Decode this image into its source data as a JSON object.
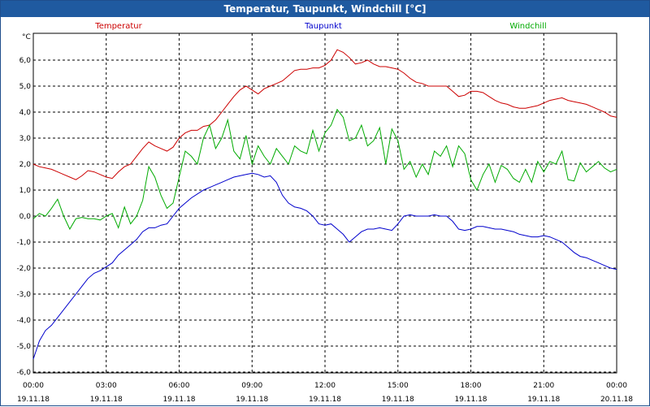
{
  "window": {
    "title": "Temperatur, Taupunkt, Windchill [°C]"
  },
  "chart_data": {
    "type": "line",
    "title": "Temperatur, Taupunkt, Windchill [°C]",
    "ylabel": "°C",
    "xlabel": "",
    "ylim": [
      -6,
      7
    ],
    "xlim": [
      0,
      24
    ],
    "grid": true,
    "y_ticks": [
      "-6,0",
      "-5,0",
      "-4,0",
      "-3,0",
      "-2,0",
      "-1,0",
      "0,0",
      "1,0",
      "2,0",
      "3,0",
      "4,0",
      "5,0",
      "6,0"
    ],
    "y_tick_values": [
      -6,
      -5,
      -4,
      -3,
      -2,
      -1,
      0,
      1,
      2,
      3,
      4,
      5,
      6
    ],
    "x_ticks": [
      {
        "time": "00:00",
        "date": "19.11.18"
      },
      {
        "time": "03:00",
        "date": "19.11.18"
      },
      {
        "time": "06:00",
        "date": "19.11.18"
      },
      {
        "time": "09:00",
        "date": "19.11.18"
      },
      {
        "time": "12:00",
        "date": "19.11.18"
      },
      {
        "time": "15:00",
        "date": "19.11.18"
      },
      {
        "time": "18:00",
        "date": "19.11.18"
      },
      {
        "time": "21:00",
        "date": "19.11.18"
      },
      {
        "time": "00:00",
        "date": "20.11.18"
      }
    ],
    "x_tick_hours": [
      0,
      3,
      6,
      9,
      12,
      15,
      18,
      21,
      24
    ],
    "legend": [
      "Temperatur",
      "Taupunkt",
      "Windchill"
    ],
    "legend_colors": [
      "#cc0000",
      "#0000cc",
      "#00aa00"
    ],
    "series": [
      {
        "name": "Temperatur",
        "color": "#cc0000",
        "x": [
          0,
          0.25,
          0.5,
          0.75,
          1,
          1.25,
          1.5,
          1.75,
          2,
          2.25,
          2.5,
          2.75,
          3,
          3.25,
          3.5,
          3.75,
          4,
          4.25,
          4.5,
          4.75,
          5,
          5.25,
          5.5,
          5.75,
          6,
          6.25,
          6.5,
          6.75,
          7,
          7.25,
          7.5,
          7.75,
          8,
          8.25,
          8.5,
          8.75,
          9,
          9.25,
          9.5,
          9.75,
          10,
          10.25,
          10.5,
          10.75,
          11,
          11.25,
          11.5,
          11.75,
          12,
          12.25,
          12.5,
          12.75,
          13,
          13.25,
          13.5,
          13.75,
          14,
          14.25,
          14.5,
          14.75,
          15,
          15.25,
          15.5,
          15.75,
          16,
          16.25,
          16.5,
          16.75,
          17,
          17.25,
          17.5,
          17.75,
          18,
          18.25,
          18.5,
          18.75,
          19,
          19.25,
          19.5,
          19.75,
          20,
          20.25,
          20.5,
          20.75,
          21,
          21.25,
          21.5,
          21.75,
          22,
          22.25,
          22.5,
          22.75,
          23,
          23.25,
          23.5,
          23.75,
          24
        ],
        "values": [
          2.0,
          1.9,
          1.85,
          1.8,
          1.7,
          1.6,
          1.5,
          1.4,
          1.55,
          1.75,
          1.7,
          1.6,
          1.5,
          1.45,
          1.7,
          1.9,
          2.0,
          2.3,
          2.6,
          2.85,
          2.7,
          2.6,
          2.5,
          2.65,
          3.0,
          3.2,
          3.3,
          3.3,
          3.45,
          3.5,
          3.7,
          4.0,
          4.3,
          4.6,
          4.85,
          5.0,
          4.85,
          4.7,
          4.9,
          5.0,
          5.1,
          5.2,
          5.4,
          5.6,
          5.65,
          5.65,
          5.7,
          5.7,
          5.8,
          6.0,
          6.4,
          6.3,
          6.1,
          5.85,
          5.9,
          6.0,
          5.85,
          5.75,
          5.75,
          5.7,
          5.65,
          5.5,
          5.3,
          5.15,
          5.1,
          5.0,
          5.0,
          5.0,
          5.0,
          4.8,
          4.6,
          4.65,
          4.8,
          4.8,
          4.75,
          4.6,
          4.45,
          4.35,
          4.3,
          4.2,
          4.15,
          4.15,
          4.2,
          4.25,
          4.35,
          4.45,
          4.5,
          4.55,
          4.45,
          4.4,
          4.35,
          4.3,
          4.2,
          4.1,
          4.0,
          3.85,
          3.8
        ]
      },
      {
        "name": "Taupunkt",
        "color": "#0000cc",
        "x": [
          0,
          0.25,
          0.5,
          0.75,
          1,
          1.25,
          1.5,
          1.75,
          2,
          2.25,
          2.5,
          2.75,
          3,
          3.25,
          3.5,
          3.75,
          4,
          4.25,
          4.5,
          4.75,
          5,
          5.25,
          5.5,
          5.75,
          6,
          6.25,
          6.5,
          6.75,
          7,
          7.25,
          7.5,
          7.75,
          8,
          8.25,
          8.5,
          8.75,
          9,
          9.25,
          9.5,
          9.75,
          10,
          10.25,
          10.5,
          10.75,
          11,
          11.25,
          11.5,
          11.75,
          12,
          12.25,
          12.5,
          12.75,
          13,
          13.25,
          13.5,
          13.75,
          14,
          14.25,
          14.5,
          14.75,
          15,
          15.25,
          15.5,
          15.75,
          16,
          16.25,
          16.5,
          16.75,
          17,
          17.25,
          17.5,
          17.75,
          18,
          18.25,
          18.5,
          18.75,
          19,
          19.25,
          19.5,
          19.75,
          20,
          20.25,
          20.5,
          20.75,
          21,
          21.25,
          21.5,
          21.75,
          22,
          22.25,
          22.5,
          22.75,
          23,
          23.25,
          23.5,
          23.75,
          24
        ],
        "values": [
          -5.5,
          -4.8,
          -4.4,
          -4.2,
          -3.9,
          -3.6,
          -3.3,
          -3.0,
          -2.7,
          -2.4,
          -2.2,
          -2.1,
          -1.95,
          -1.8,
          -1.5,
          -1.3,
          -1.1,
          -0.9,
          -0.6,
          -0.45,
          -0.45,
          -0.35,
          -0.3,
          0.0,
          0.3,
          0.5,
          0.7,
          0.85,
          1.0,
          1.1,
          1.2,
          1.3,
          1.4,
          1.5,
          1.55,
          1.6,
          1.65,
          1.6,
          1.5,
          1.55,
          1.3,
          0.8,
          0.5,
          0.35,
          0.3,
          0.2,
          0.0,
          -0.3,
          -0.35,
          -0.3,
          -0.5,
          -0.7,
          -1.0,
          -0.8,
          -0.6,
          -0.5,
          -0.5,
          -0.45,
          -0.5,
          -0.55,
          -0.3,
          0.0,
          0.05,
          0.0,
          0.0,
          0.0,
          0.05,
          0.0,
          0.0,
          -0.2,
          -0.5,
          -0.55,
          -0.5,
          -0.4,
          -0.4,
          -0.45,
          -0.5,
          -0.5,
          -0.55,
          -0.6,
          -0.7,
          -0.75,
          -0.8,
          -0.8,
          -0.75,
          -0.8,
          -0.9,
          -1.0,
          -1.2,
          -1.4,
          -1.55,
          -1.6,
          -1.7,
          -1.8,
          -1.9,
          -2.0,
          -2.05
        ]
      },
      {
        "name": "Windchill",
        "color": "#00aa00",
        "x": [
          0,
          0.25,
          0.5,
          0.75,
          1,
          1.25,
          1.5,
          1.75,
          2,
          2.25,
          2.5,
          2.75,
          3,
          3.25,
          3.5,
          3.75,
          4,
          4.25,
          4.5,
          4.75,
          5,
          5.25,
          5.5,
          5.75,
          6,
          6.25,
          6.5,
          6.75,
          7,
          7.25,
          7.5,
          7.75,
          8,
          8.25,
          8.5,
          8.75,
          9,
          9.25,
          9.5,
          9.75,
          10,
          10.25,
          10.5,
          10.75,
          11,
          11.25,
          11.5,
          11.75,
          12,
          12.25,
          12.5,
          12.75,
          13,
          13.25,
          13.5,
          13.75,
          14,
          14.25,
          14.5,
          14.75,
          15,
          15.25,
          15.5,
          15.75,
          16,
          16.25,
          16.5,
          16.75,
          17,
          17.25,
          17.5,
          17.75,
          18,
          18.25,
          18.5,
          18.75,
          19,
          19.25,
          19.5,
          19.75,
          20,
          20.25,
          20.5,
          20.75,
          21,
          21.25,
          21.5,
          21.75,
          22,
          22.25,
          22.5,
          22.75,
          23,
          23.25,
          23.5,
          23.75,
          24
        ],
        "values": [
          -0.1,
          0.1,
          0.0,
          0.3,
          0.65,
          0.0,
          -0.5,
          -0.1,
          -0.05,
          -0.1,
          -0.1,
          -0.15,
          0.0,
          0.1,
          -0.45,
          0.35,
          -0.3,
          0.0,
          0.6,
          1.9,
          1.5,
          0.8,
          0.3,
          0.5,
          1.5,
          2.5,
          2.3,
          2.0,
          3.0,
          3.5,
          2.6,
          3.0,
          3.7,
          2.5,
          2.2,
          3.1,
          2.0,
          2.7,
          2.3,
          2.0,
          2.6,
          2.3,
          2.0,
          2.7,
          2.5,
          2.4,
          3.3,
          2.5,
          3.2,
          3.5,
          4.1,
          3.8,
          2.9,
          3.0,
          3.5,
          2.7,
          2.9,
          3.4,
          2.0,
          3.35,
          2.9,
          1.8,
          2.1,
          1.5,
          2.0,
          1.6,
          2.5,
          2.3,
          2.7,
          1.9,
          2.7,
          2.4,
          1.4,
          1.0,
          1.6,
          2.0,
          1.3,
          1.95,
          1.8,
          1.45,
          1.3,
          1.8,
          1.3,
          2.1,
          1.7,
          2.1,
          2.0,
          2.5,
          1.4,
          1.35,
          2.05,
          1.7,
          1.9,
          2.1,
          1.85,
          1.7,
          1.8
        ]
      }
    ]
  }
}
